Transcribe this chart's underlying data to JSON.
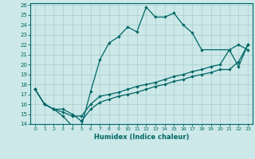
{
  "xlabel": "Humidex (Indice chaleur)",
  "background_color": "#cce8e8",
  "line_color": "#006666",
  "grid_color": "#aacccc",
  "xlim": [
    -0.5,
    23.5
  ],
  "ylim": [
    14,
    26.2
  ],
  "xticks": [
    0,
    1,
    2,
    3,
    4,
    5,
    6,
    7,
    8,
    9,
    10,
    11,
    12,
    13,
    14,
    15,
    16,
    17,
    18,
    19,
    20,
    21,
    22,
    23
  ],
  "yticks": [
    14,
    15,
    16,
    17,
    18,
    19,
    20,
    21,
    22,
    23,
    24,
    25,
    26
  ],
  "line1_x": [
    0,
    1,
    2,
    3,
    4,
    5,
    6,
    7,
    8,
    9,
    10,
    11,
    12,
    13,
    14,
    15,
    16,
    17,
    18,
    21,
    22,
    23
  ],
  "line1_y": [
    17.5,
    16.0,
    15.5,
    14.8,
    13.8,
    13.8,
    17.3,
    20.5,
    22.2,
    22.8,
    23.8,
    23.3,
    25.8,
    24.8,
    24.8,
    25.2,
    24.0,
    23.2,
    21.5,
    21.5,
    22.0,
    21.5
  ],
  "line2_x": [
    0,
    1,
    2,
    3,
    4,
    5,
    6,
    7,
    8,
    9,
    10,
    11,
    12,
    13,
    14,
    15,
    16,
    17,
    18,
    19,
    20,
    21,
    22,
    23
  ],
  "line2_y": [
    17.5,
    16.0,
    15.5,
    15.5,
    15.0,
    14.3,
    15.5,
    16.2,
    16.5,
    16.8,
    17.0,
    17.2,
    17.5,
    17.8,
    18.0,
    18.3,
    18.5,
    18.8,
    19.0,
    19.2,
    19.5,
    19.5,
    20.3,
    22.0
  ],
  "line3_x": [
    0,
    1,
    2,
    3,
    4,
    5,
    6,
    7,
    8,
    9,
    10,
    11,
    12,
    13,
    14,
    15,
    16,
    17,
    18,
    19,
    20,
    21,
    22,
    23
  ],
  "line3_y": [
    17.5,
    16.0,
    15.5,
    15.2,
    14.8,
    14.8,
    16.0,
    16.8,
    17.0,
    17.2,
    17.5,
    17.8,
    18.0,
    18.2,
    18.5,
    18.8,
    19.0,
    19.3,
    19.5,
    19.8,
    20.0,
    21.5,
    19.8,
    22.0
  ]
}
